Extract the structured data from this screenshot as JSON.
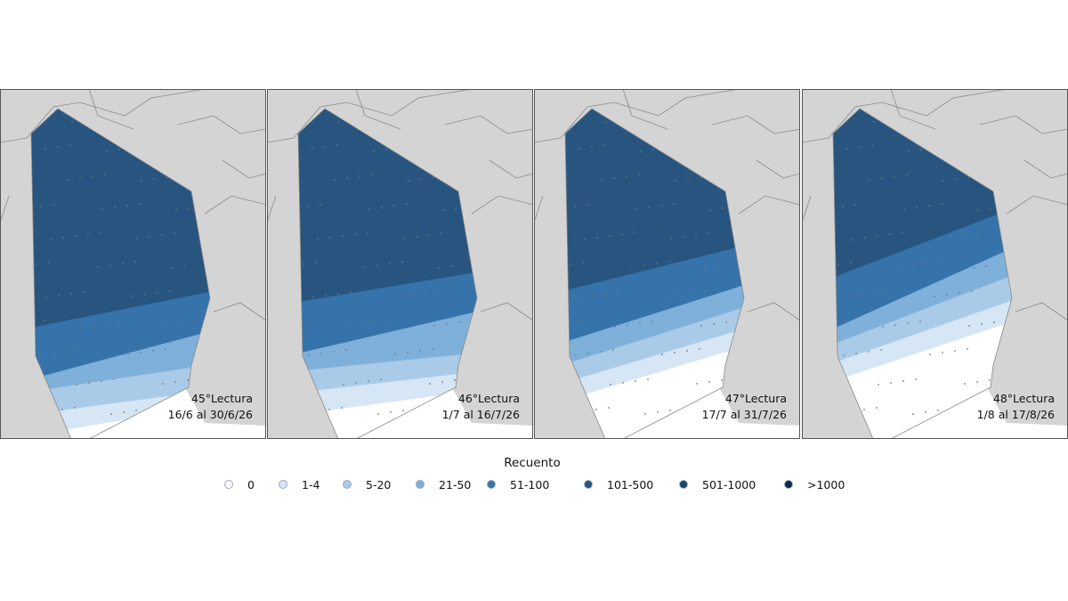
{
  "panels": [
    {
      "title": "45°Lectura",
      "dates": "16/6 al 30/6/26"
    },
    {
      "title": "46°Lectura",
      "dates": "1/7 al 16/7/26"
    },
    {
      "title": "47°Lectura",
      "dates": "17/7 al 31/7/26"
    },
    {
      "title": "48°Lectura",
      "dates": "1/8 al 17/8/26"
    }
  ],
  "legend": {
    "title": "Recuento",
    "items": [
      {
        "label": "0",
        "color": "#ffffff"
      },
      {
        "label": "1-4",
        "color": "#d6e6f4"
      },
      {
        "label": "5-20",
        "color": "#a9cbe8"
      },
      {
        "label": "21-50",
        "color": "#7eb0da"
      },
      {
        "label": "51-100",
        "color": "#3573aa"
      },
      {
        "label": "101-500",
        "color": "#27557f"
      },
      {
        "label": "501-1000",
        "color": "#1a456f"
      },
      {
        "label": ">1000",
        "color": "#0d2a48"
      }
    ]
  }
}
